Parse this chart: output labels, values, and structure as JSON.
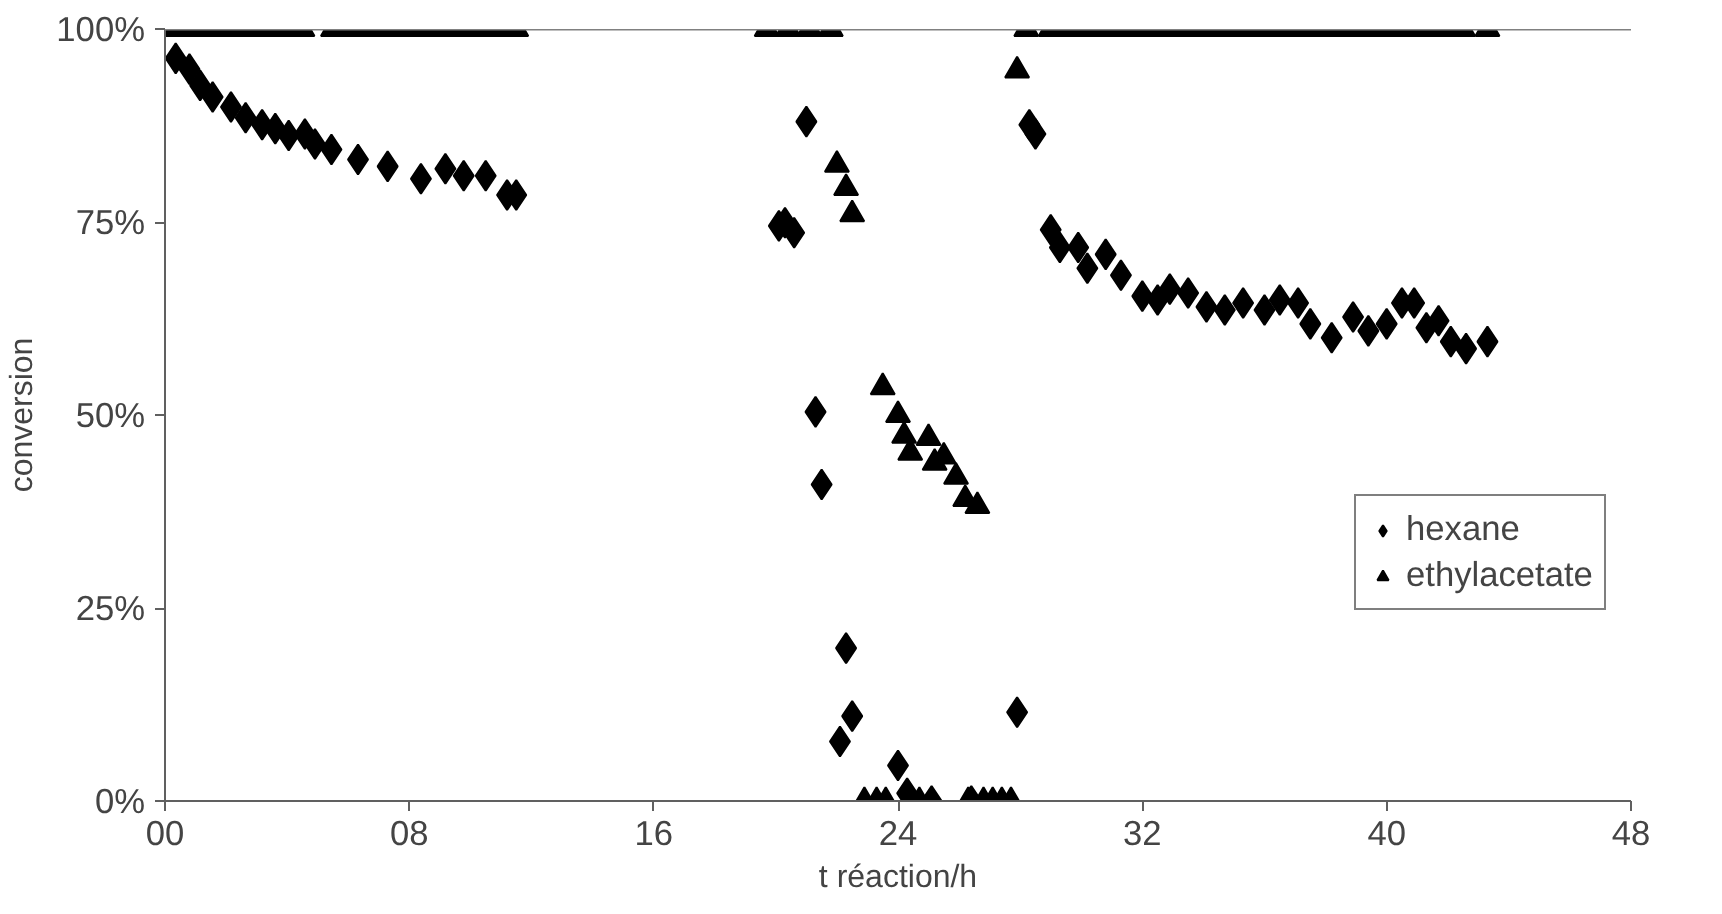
{
  "chart_data": {
    "type": "scatter",
    "xlabel": "t réaction/h",
    "ylabel": "conversion",
    "xlim": [
      0,
      48
    ],
    "ylim": [
      0,
      100
    ],
    "xticks": [
      {
        "value": 0,
        "label": "00"
      },
      {
        "value": 8,
        "label": "08"
      },
      16,
      24,
      32,
      40,
      48
    ],
    "yticks": [
      {
        "value": 0,
        "label": "0%"
      },
      {
        "value": 25,
        "label": "25%"
      },
      {
        "value": 50,
        "label": "50%"
      },
      {
        "value": 75,
        "label": "75%"
      },
      {
        "value": 100,
        "label": "100%"
      }
    ],
    "grid": false,
    "legend": "right",
    "ref_lines": [
      {
        "axis": "y",
        "value": 100,
        "color": "#808080"
      }
    ],
    "series": [
      {
        "name": "hexane",
        "color": "#000000",
        "marker": "diamond",
        "x": [
          0.35,
          0.8,
          1.15,
          1.56,
          2.16,
          2.64,
          3.18,
          3.61,
          4.05,
          4.58,
          4.91,
          5.45,
          6.32,
          7.29,
          8.38,
          9.18,
          9.78,
          10.5,
          11.2,
          11.5,
          20.1,
          20.3,
          20.6,
          21.0,
          21.3,
          21.5,
          22.1,
          22.3,
          22.5,
          24.0,
          24.3,
          25.1,
          26.4,
          27.9,
          28.3,
          28.5,
          29.0,
          29.3,
          29.9,
          30.2,
          30.8,
          31.3,
          32.0,
          32.5,
          32.9,
          33.5,
          34.1,
          34.7,
          35.3,
          36.0,
          36.5,
          37.1,
          37.5,
          38.2,
          38.9,
          39.4,
          40.0,
          40.5,
          40.9,
          41.3,
          41.7,
          42.1,
          42.6,
          43.3
        ],
        "values": [
          96.2,
          94.8,
          92.7,
          91.2,
          89.9,
          88.5,
          87.6,
          87.1,
          86.2,
          86.4,
          85.1,
          84.4,
          83.1,
          82.2,
          80.6,
          81.9,
          81.0,
          81.0,
          78.5,
          78.5,
          74.5,
          74.9,
          73.6,
          88,
          50.4,
          41,
          7.7,
          19.8,
          11,
          4.6,
          1,
          0,
          0,
          11.5,
          87.6,
          86.4,
          74,
          71.7,
          71.7,
          69,
          70.8,
          68.1,
          65.4,
          64.9,
          66.3,
          65.8,
          64.0,
          63.6,
          64.5,
          63.6,
          64.9,
          64.5,
          61.8,
          60.0,
          62.7,
          60.9,
          61.8,
          64.5,
          64.5,
          61.3,
          62.2,
          59.5,
          58.6,
          59.5
        ]
      },
      {
        "name": "ethylacetate",
        "color": "#000000",
        "marker": "triangle",
        "x": [
          0.0,
          0.5,
          1.0,
          1.5,
          2.0,
          2.5,
          3.0,
          3.5,
          4.0,
          4.5,
          5.5,
          6.0,
          6.5,
          7.0,
          7.5,
          8.0,
          8.5,
          9.0,
          9.5,
          10.0,
          10.5,
          11.0,
          11.5,
          19.7,
          20.4,
          21.1,
          21.8,
          22.0,
          22.3,
          22.5,
          22.9,
          23.3,
          23.6,
          23.5,
          24.0,
          24.2,
          24.4,
          24.7,
          25.0,
          25.2,
          25.5,
          25.9,
          26.2,
          26.3,
          26.6,
          26.8,
          27.1,
          27.4,
          27.7,
          27.9,
          28.2,
          29.0,
          29.5,
          30.0,
          30.5,
          31.0,
          31.5,
          32.0,
          32.5,
          33.0,
          33.5,
          34.0,
          34.5,
          35.0,
          35.5,
          36.0,
          36.5,
          37.0,
          37.5,
          38.0,
          38.5,
          39.0,
          39.5,
          40.0,
          40.5,
          41.0,
          41.5,
          42.0,
          42.5,
          43.3
        ],
        "values": [
          100,
          100,
          100,
          100,
          100,
          100,
          100,
          100,
          100,
          100,
          100,
          100,
          100,
          100,
          100,
          100,
          100,
          100,
          100,
          100,
          100,
          100,
          100,
          100,
          100,
          100,
          100,
          82.4,
          79.4,
          76,
          0,
          0,
          0,
          53.6,
          50,
          47.3,
          45.1,
          0,
          47,
          43.8,
          44.6,
          42,
          39.1,
          0,
          38.2,
          0,
          0,
          0,
          0,
          94.6,
          100,
          100,
          100,
          100,
          100,
          100,
          100,
          100,
          100,
          100,
          100,
          100,
          100,
          100,
          100,
          100,
          100,
          100,
          100,
          100,
          100,
          100,
          100,
          100,
          100,
          100,
          100,
          100,
          100,
          100
        ]
      }
    ]
  }
}
